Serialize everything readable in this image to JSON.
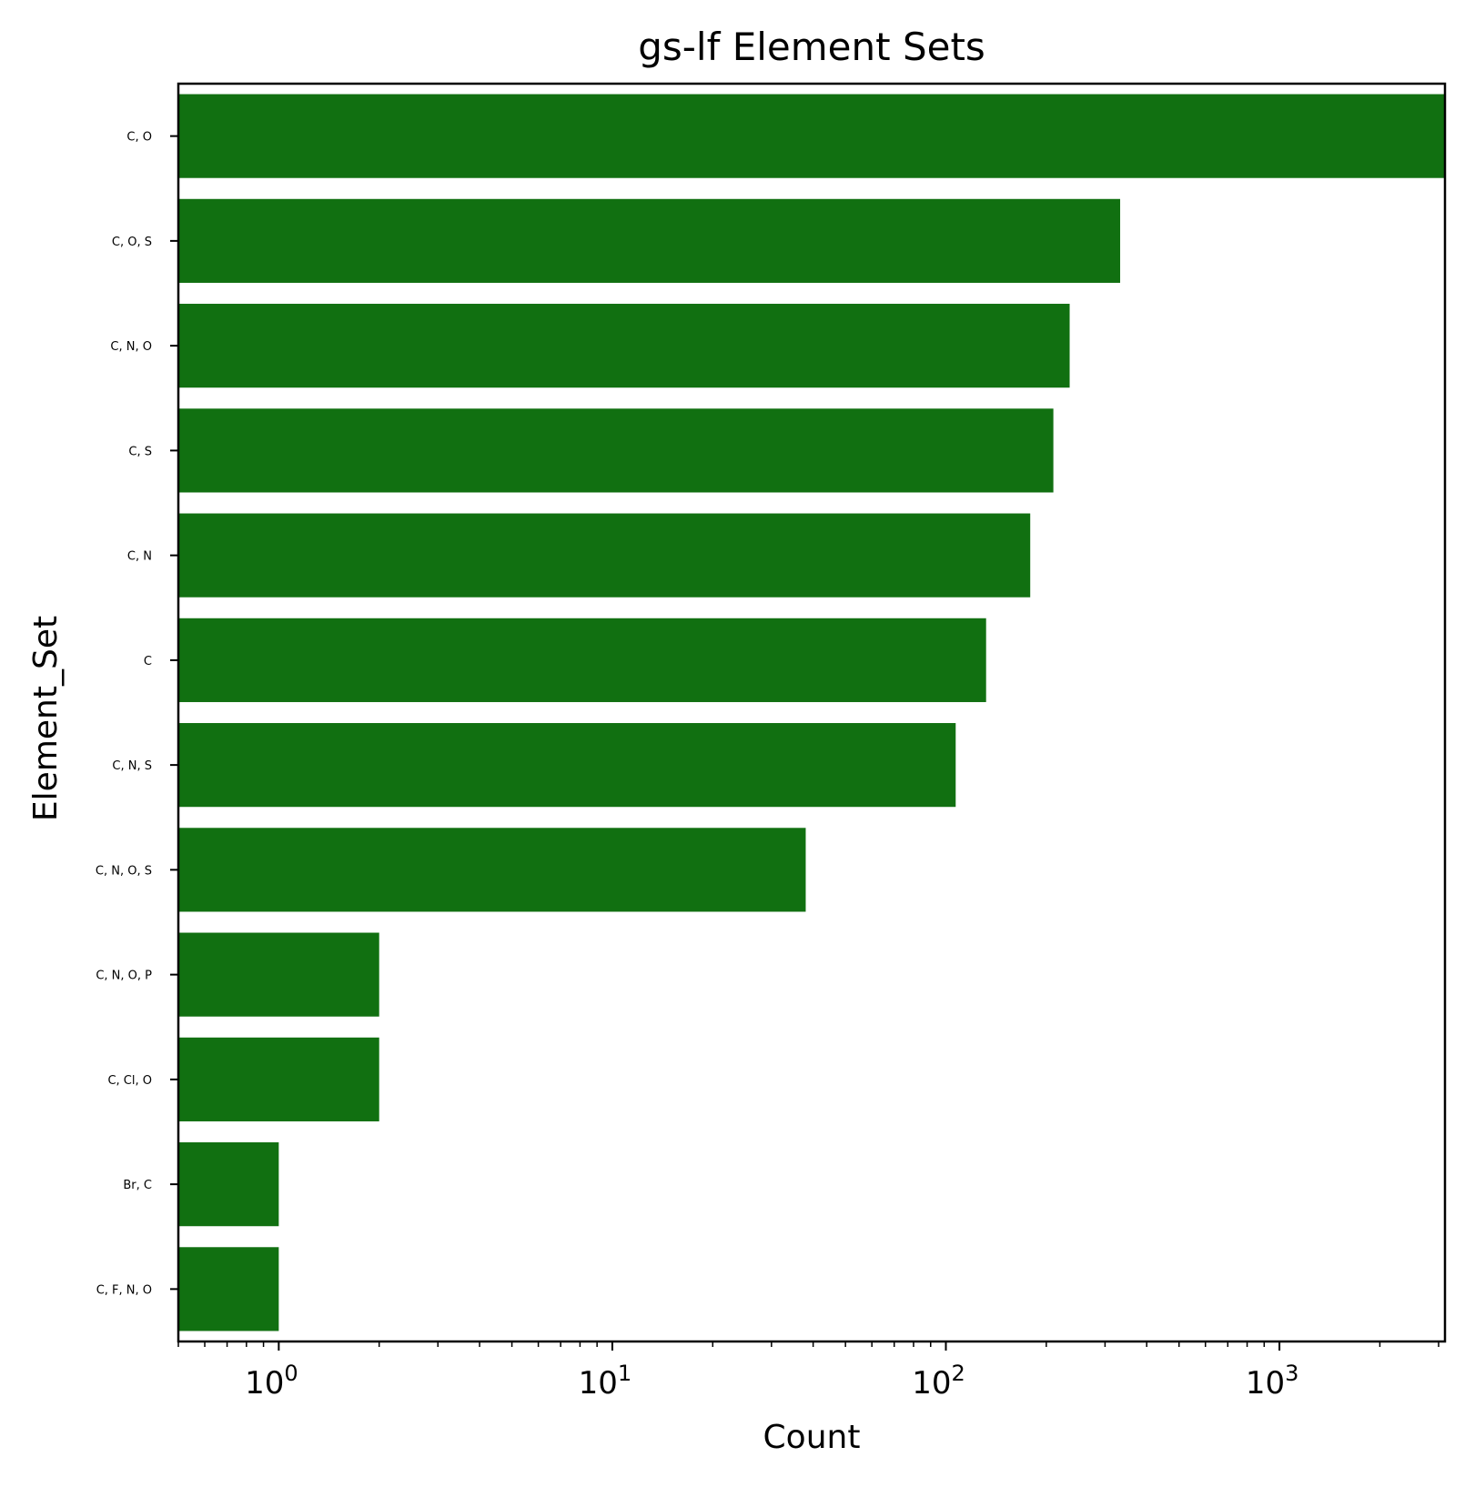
{
  "chart_data": {
    "type": "bar",
    "orientation": "horizontal",
    "title": "gs-lf Element Sets",
    "xlabel": "Count",
    "ylabel": "Element_Set",
    "x_scale": "log",
    "xlim": [
      0.5,
      3135
    ],
    "categories": [
      "C, O",
      "C, O, S",
      "C, N, O",
      "C, S",
      "C, N",
      "C",
      "C, N, S",
      "C, N, O, S",
      "C, N, O, P",
      "C, Cl, O",
      "Br, C",
      "C, F, N, O"
    ],
    "values": [
      3135,
      333,
      235,
      210,
      179,
      132,
      107,
      38,
      2,
      2,
      1,
      1
    ],
    "bar_color": "#117011",
    "x_ticks": [
      {
        "value": 1,
        "base": "10",
        "exp": "0"
      },
      {
        "value": 10,
        "base": "10",
        "exp": "1"
      },
      {
        "value": 100,
        "base": "10",
        "exp": "2"
      },
      {
        "value": 1000,
        "base": "10",
        "exp": "3"
      }
    ],
    "grid": false,
    "legend": "none"
  }
}
